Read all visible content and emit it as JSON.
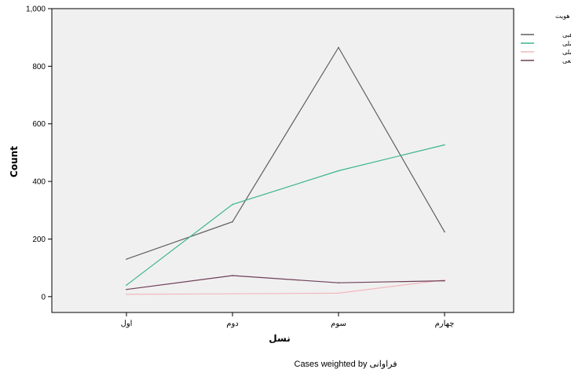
{
  "chart_data": {
    "type": "line",
    "title": "",
    "xlabel": "نسل",
    "ylabel": "Count",
    "categories": [
      "اول",
      "دوم",
      "سوم",
      "چهارم"
    ],
    "ylim": [
      -55,
      1000
    ],
    "yticks": [
      0,
      200,
      400,
      600,
      800,
      1000
    ],
    "ytick_labels": [
      "0",
      "200",
      "400",
      "600",
      "800",
      "1,000"
    ],
    "grid": false,
    "legend_title": "هویت",
    "legend_position": "right",
    "series": [
      {
        "name": "هویت مذهبی",
        "color": "#5f5f5f",
        "values": [
          130,
          260,
          865,
          225
        ]
      },
      {
        "name": "هویت ملی",
        "color": "#3cb68b",
        "values": [
          40,
          320,
          437,
          527
        ]
      },
      {
        "name": "هویت فراملی",
        "color": "#f2b8bd",
        "values": [
          8,
          10,
          12,
          58
        ]
      },
      {
        "name": "اساطیر جمعی",
        "color": "#6e3f57",
        "values": [
          25,
          73,
          48,
          55
        ]
      }
    ],
    "footnote": "Cases weighted by فراوانی"
  }
}
